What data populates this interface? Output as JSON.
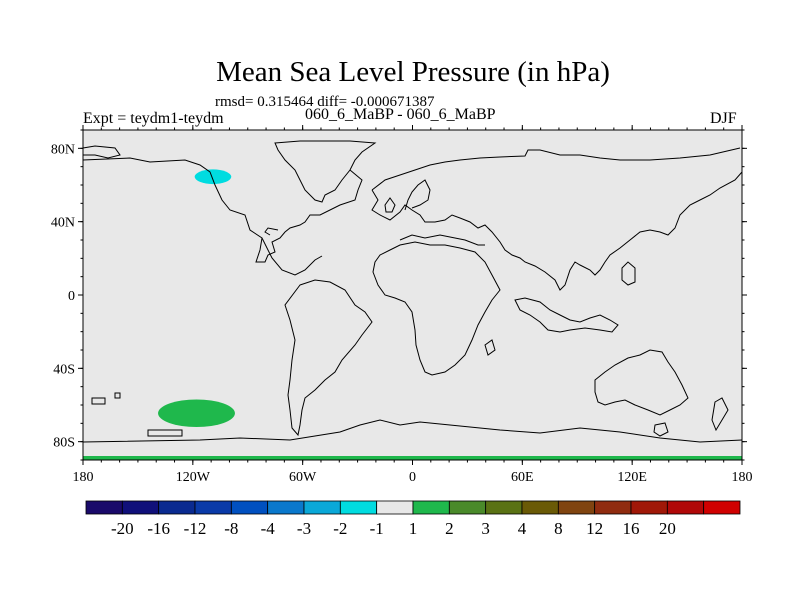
{
  "chart_data": {
    "type": "heatmap",
    "title": "Mean Sea Level Pressure (in hPa)",
    "subtitle": "rmsd= 0.315464 diff= -0.000671387",
    "left_label": "Expt = teydm1-teydm",
    "center_label": "060_6_MaBP - 060_6_MaBP",
    "right_label": "DJF",
    "x_range": [
      -180,
      180
    ],
    "y_range": [
      -90,
      90
    ],
    "x_ticks": [
      {
        "value": -180,
        "label": "180"
      },
      {
        "value": -120,
        "label": "120W"
      },
      {
        "value": -60,
        "label": "60W"
      },
      {
        "value": 0,
        "label": "0"
      },
      {
        "value": 60,
        "label": "60E"
      },
      {
        "value": 120,
        "label": "120E"
      },
      {
        "value": 180,
        "label": "180"
      }
    ],
    "y_ticks": [
      {
        "value": 80,
        "label": "80N"
      },
      {
        "value": 40,
        "label": "40N"
      },
      {
        "value": 0,
        "label": "0"
      },
      {
        "value": -40,
        "label": "40S"
      },
      {
        "value": -80,
        "label": "80S"
      }
    ],
    "background_color": "#e8e8e8",
    "anomalies": [
      {
        "name": "arctic-negative",
        "lon": -109,
        "lat": 64.5,
        "lon_radius": 10,
        "lat_radius": 4,
        "color": "#00dce0"
      },
      {
        "name": "southern-ocean-positive",
        "lon": -118,
        "lat": -64.5,
        "lon_radius": 21,
        "lat_radius": 7.5,
        "color": "#1fb84c"
      }
    ],
    "colorbar": {
      "colors": [
        "#1a0a6a",
        "#10107a",
        "#0a2a90",
        "#0a3aa8",
        "#0050c0",
        "#0a78cc",
        "#0aa8d8",
        "#00dce0",
        "#e8e8e8",
        "#1fb84c",
        "#4a8a2a",
        "#5a7214",
        "#6a5a06",
        "#804410",
        "#902c10",
        "#a01808",
        "#b00808",
        "#d00000"
      ],
      "labels": [
        "-20",
        "-16",
        "-12",
        "-8",
        "-4",
        "-3",
        "-2",
        "-1",
        "1",
        "2",
        "3",
        "4",
        "8",
        "12",
        "16",
        "20"
      ]
    }
  }
}
